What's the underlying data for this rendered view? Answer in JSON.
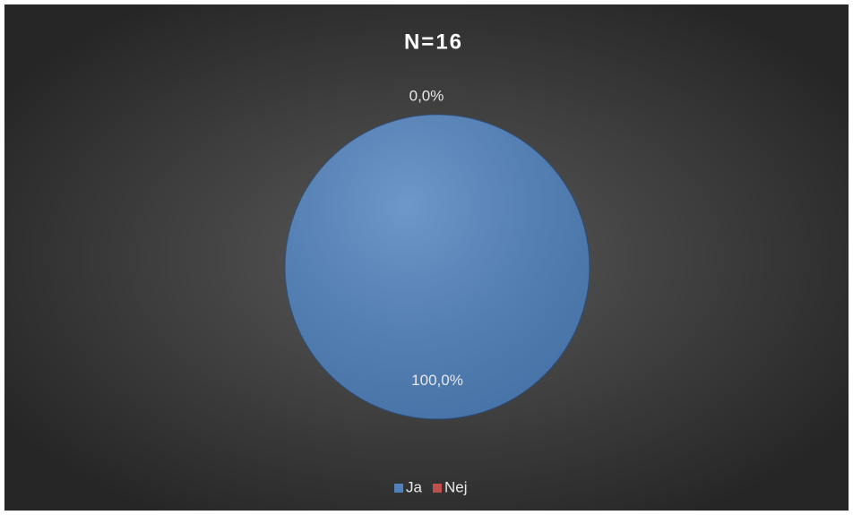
{
  "chart_data": {
    "type": "pie",
    "title": "N=16",
    "categories": [
      "Ja",
      "Nej"
    ],
    "values": [
      100,
      0
    ],
    "value_labels": [
      "100,0%",
      "0,0%"
    ],
    "colors": [
      "#4f81bd",
      "#c0504d"
    ],
    "legend": "bottom"
  }
}
